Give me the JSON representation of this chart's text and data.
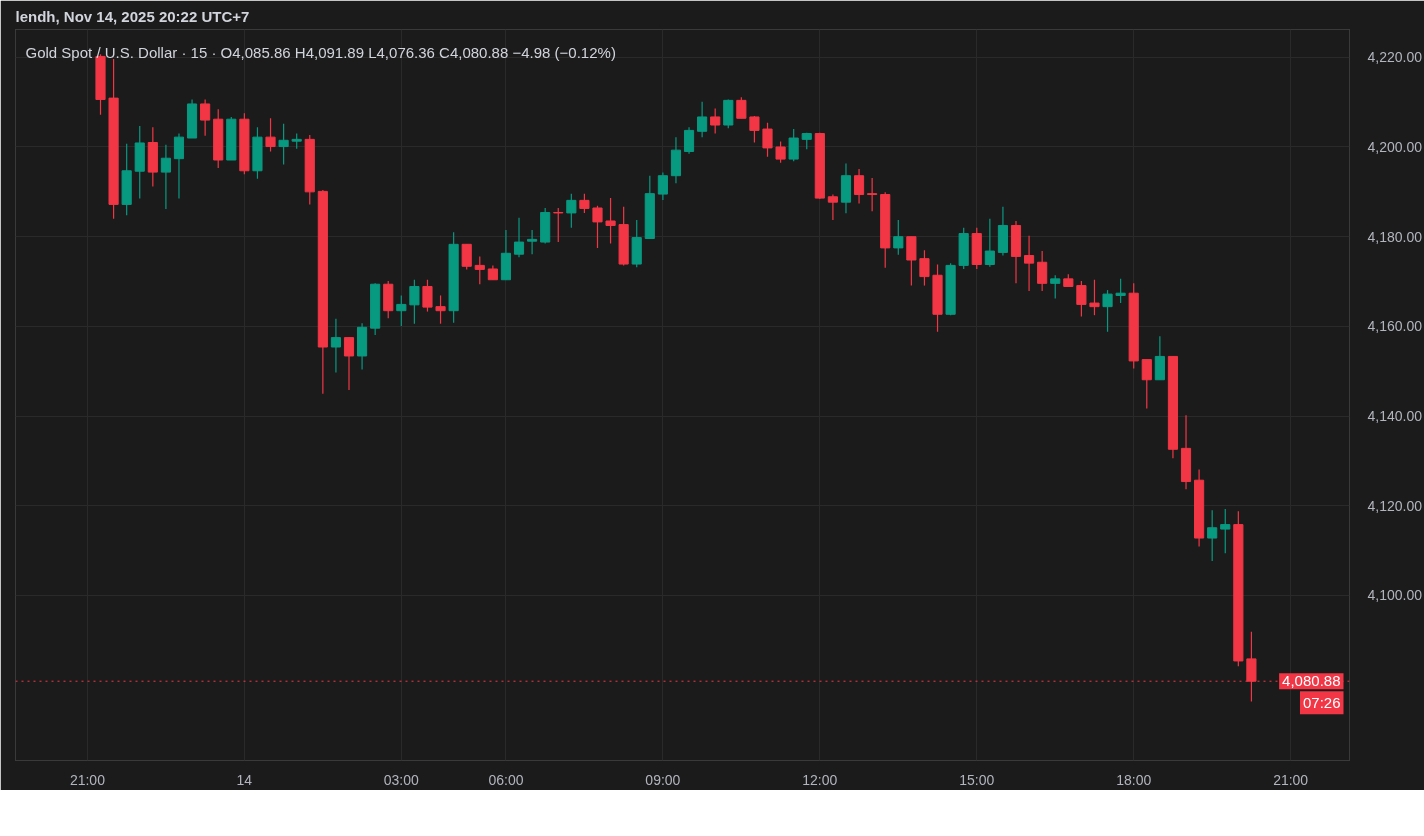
{
  "chart_data": {
    "type": "candlestick",
    "title": "Gold Spot / U.S. Dollar · 15 · O4,085.86 H4,091.89 L4,076.36 C4,080.88 −4.98 (−0.12%)",
    "subtitle": "lendh, Nov 14, 2025 20:22 UTC+7",
    "categories": [
      null,
      null,
      null,
      null,
      null,
      "21:00",
      null,
      null,
      null,
      null,
      null,
      null,
      null,
      null,
      null,
      null,
      null,
      "14",
      null,
      null,
      null,
      null,
      null,
      null,
      null,
      null,
      null,
      null,
      null,
      "03:00",
      null,
      null,
      null,
      null,
      null,
      null,
      null,
      "06:00",
      null,
      null,
      null,
      null,
      null,
      null,
      null,
      null,
      null,
      null,
      null,
      "09:00",
      null,
      null,
      null,
      null,
      null,
      null,
      null,
      null,
      null,
      null,
      null,
      "12:00",
      null,
      null,
      null,
      null,
      null,
      null,
      null,
      null,
      null,
      null,
      null,
      "15:00",
      null,
      null,
      null,
      null,
      null,
      null,
      null,
      null,
      null,
      null,
      null,
      "18:00",
      null,
      null,
      null,
      null,
      null,
      null,
      null,
      null,
      null,
      null,
      null,
      "21:00",
      null,
      null,
      null,
      null
    ],
    "ohlc": [
      null,
      null,
      null,
      null,
      null,
      null,
      [
        4220.2,
        4220.7,
        4207.2,
        4210.6
      ],
      [
        4210.9,
        4219.6,
        4184.0,
        4187.2
      ],
      [
        4187.2,
        4200.7,
        4184.8,
        4194.7
      ],
      [
        4194.6,
        4204.7,
        4188.5,
        4200.9
      ],
      [
        4201.0,
        4204.4,
        4191.2,
        4194.4
      ],
      [
        4194.4,
        4200.5,
        4186.2,
        4197.5
      ],
      [
        4197.4,
        4203.0,
        4188.5,
        4202.2
      ],
      [
        4202.0,
        4210.6,
        4202.0,
        4209.6
      ],
      [
        4209.6,
        4210.6,
        4202.5,
        4206.0
      ],
      [
        4206.2,
        4208.4,
        4195.3,
        4197.1
      ],
      [
        4197.1,
        4206.7,
        4197.1,
        4206.2
      ],
      [
        4206.2,
        4207.5,
        4193.9,
        4194.7
      ],
      [
        4194.7,
        4204.4,
        4192.9,
        4202.2
      ],
      [
        4202.2,
        4206.4,
        4199.0,
        4200.1
      ],
      [
        4200.1,
        4205.2,
        4196.1,
        4201.5
      ],
      [
        4201.3,
        4203.0,
        4199.6,
        4201.7
      ],
      [
        4201.7,
        4202.7,
        4187.2,
        4190.0
      ],
      [
        4190.1,
        4190.4,
        4145.0,
        4155.4
      ],
      [
        4155.4,
        4161.7,
        4149.7,
        4157.5
      ],
      [
        4157.5,
        4157.5,
        4145.8,
        4153.4
      ],
      [
        4153.4,
        4160.7,
        4150.4,
        4159.8
      ],
      [
        4159.6,
        4169.6,
        4158.1,
        4169.4
      ],
      [
        4169.4,
        4170.1,
        4161.8,
        4163.5
      ],
      [
        4163.5,
        4166.9,
        4160.1,
        4164.9
      ],
      [
        4164.8,
        4170.4,
        4160.6,
        4168.9
      ],
      [
        4168.9,
        4170.4,
        4163.3,
        4164.3
      ],
      [
        4164.4,
        4166.9,
        4160.6,
        4163.5
      ],
      [
        4163.5,
        4181.0,
        4160.8,
        4178.3
      ],
      [
        4178.3,
        4178.3,
        4172.7,
        4173.4
      ],
      [
        4173.6,
        4175.6,
        4169.4,
        4172.7
      ],
      [
        4172.8,
        4173.6,
        4170.4,
        4170.4
      ],
      [
        4170.4,
        4181.5,
        4170.4,
        4176.3
      ],
      [
        4176.1,
        4184.2,
        4175.4,
        4178.8
      ],
      [
        4179.0,
        4181.5,
        4176.1,
        4179.4
      ],
      [
        4178.8,
        4186.4,
        4178.5,
        4185.4
      ],
      [
        4185.4,
        4186.4,
        4178.8,
        4185.3
      ],
      [
        4185.3,
        4189.6,
        4182.0,
        4188.1
      ],
      [
        4188.1,
        4189.6,
        4185.3,
        4186.3
      ],
      [
        4186.4,
        4186.9,
        4177.5,
        4183.3
      ],
      [
        4183.5,
        4188.6,
        4178.5,
        4182.5
      ],
      [
        4182.7,
        4186.7,
        4173.6,
        4173.9
      ],
      [
        4173.9,
        4183.7,
        4173.2,
        4179.8
      ],
      [
        4179.6,
        4193.6,
        4179.6,
        4189.6
      ],
      [
        4189.5,
        4194.3,
        4188.2,
        4193.6
      ],
      [
        4193.6,
        4202.2,
        4191.9,
        4199.3
      ],
      [
        4199.0,
        4204.4,
        4198.5,
        4203.7
      ],
      [
        4203.5,
        4210.1,
        4202.2,
        4206.7
      ],
      [
        4206.7,
        4208.6,
        4203.0,
        4204.9
      ],
      [
        4204.9,
        4210.6,
        4204.2,
        4210.4
      ],
      [
        4210.4,
        4211.1,
        4206.4,
        4206.4
      ],
      [
        4206.7,
        4206.9,
        4201.0,
        4203.7
      ],
      [
        4204.0,
        4205.4,
        4197.8,
        4199.8
      ],
      [
        4200.0,
        4201.2,
        4196.5,
        4197.3
      ],
      [
        4197.3,
        4204.0,
        4196.8,
        4202.0
      ],
      [
        4201.7,
        4203.2,
        4199.5,
        4203.0
      ],
      [
        4203.0,
        4203.2,
        4188.4,
        4188.6
      ],
      [
        4188.9,
        4189.4,
        4183.7,
        4187.7
      ],
      [
        4187.7,
        4196.3,
        4185.2,
        4193.6
      ],
      [
        4193.6,
        4195.1,
        4187.4,
        4189.4
      ],
      [
        4189.6,
        4193.1,
        4185.7,
        4189.4
      ],
      [
        4189.4,
        4189.9,
        4173.1,
        4177.5
      ],
      [
        4177.5,
        4183.7,
        4176.0,
        4180.0
      ],
      [
        4180.0,
        4180.0,
        4169.1,
        4174.8
      ],
      [
        4175.1,
        4177.0,
        4169.1,
        4171.1
      ],
      [
        4171.4,
        4173.8,
        4158.8,
        4162.7
      ],
      [
        4162.7,
        4174.1,
        4162.5,
        4173.6
      ],
      [
        4173.6,
        4182.0,
        4172.8,
        4180.7
      ],
      [
        4180.7,
        4182.0,
        4172.8,
        4173.8
      ],
      [
        4173.8,
        4184.0,
        4173.3,
        4176.8
      ],
      [
        4176.5,
        4186.7,
        4175.8,
        4182.5
      ],
      [
        4182.5,
        4183.5,
        4169.6,
        4175.6
      ],
      [
        4175.8,
        4180.2,
        4167.9,
        4174.1
      ],
      [
        4174.3,
        4176.8,
        4167.9,
        4169.6
      ],
      [
        4169.6,
        4171.4,
        4166.2,
        4170.6
      ],
      [
        4170.6,
        4171.6,
        4168.9,
        4168.9
      ],
      [
        4169.1,
        4170.1,
        4162.2,
        4164.9
      ],
      [
        4165.2,
        4170.4,
        4162.5,
        4164.4
      ],
      [
        4164.4,
        4168.1,
        4158.8,
        4167.2
      ],
      [
        4166.9,
        4170.6,
        4165.2,
        4167.4
      ],
      [
        4167.4,
        4169.6,
        4150.6,
        4152.3
      ],
      [
        4152.6,
        4152.6,
        4141.7,
        4148.1
      ],
      [
        4148.1,
        4157.8,
        4148.1,
        4153.3
      ],
      [
        4153.3,
        4153.3,
        4130.6,
        4132.6
      ],
      [
        4132.8,
        4140.2,
        4123.7,
        4125.4
      ],
      [
        4125.7,
        4128.1,
        4110.9,
        4112.8
      ],
      [
        4112.8,
        4119.0,
        4107.7,
        4115.1
      ],
      [
        4114.8,
        4119.3,
        4109.4,
        4115.8
      ],
      [
        4115.8,
        4118.8,
        4084.2,
        4085.4
      ],
      [
        4085.86,
        4091.89,
        4076.36,
        4080.88
      ],
      null,
      null,
      null,
      null,
      null,
      null,
      null
    ],
    "colors": [
      null,
      null,
      null,
      null,
      null,
      null,
      "#f23645",
      "#f23645",
      "#089981",
      "#089981",
      "#f23645",
      "#089981",
      "#089981",
      "#089981",
      "#f23645",
      "#f23645",
      "#089981",
      "#f23645",
      "#089981",
      "#f23645",
      "#089981",
      "#089981",
      "#f23645",
      "#f23645",
      "#089981",
      "#f23645",
      "#089981",
      "#089981",
      "#f23645",
      "#089981",
      "#089981",
      "#f23645",
      "#f23645",
      "#089981",
      "#f23645",
      "#f23645",
      "#f23645",
      "#089981",
      "#089981",
      "#089981",
      "#089981",
      "#f23645",
      "#089981",
      "#f23645",
      "#f23645",
      "#f23645",
      "#f23645",
      "#089981",
      "#089981",
      "#089981",
      "#089981",
      "#089981",
      "#089981",
      "#f23645",
      "#089981",
      "#f23645",
      "#f23645",
      "#f23645",
      "#f23645",
      "#089981",
      "#089981",
      "#f23645",
      "#f23645",
      "#089981",
      "#f23645",
      "#f23645",
      "#f23645",
      "#089981",
      "#f23645",
      "#f23645",
      "#f23645",
      "#089981",
      "#089981",
      "#f23645",
      "#089981",
      "#089981",
      "#f23645",
      "#f23645",
      "#f23645",
      "#089981",
      "#f23645",
      "#f23645",
      "#f23645",
      "#089981",
      "#089981",
      "#f23645",
      "#f23645",
      "#089981",
      "#f23645",
      "#f23645",
      "#f23645",
      "#089981",
      "#089981",
      "#f23645",
      "#f23645",
      null,
      null,
      null,
      null,
      null,
      null,
      null
    ],
    "ylim": [
      4063.2,
      4226.2
    ],
    "yticks": [
      {
        "value": 4100,
        "label": "4,100.00"
      },
      {
        "value": 4120,
        "label": "4,120.00"
      },
      {
        "value": 4140,
        "label": "4,140.00"
      },
      {
        "value": 4160,
        "label": "4,160.00"
      },
      {
        "value": 4180,
        "label": "4,180.00"
      },
      {
        "value": 4200,
        "label": "4,200.00"
      },
      {
        "value": 4220,
        "label": "4,220.00"
      }
    ],
    "grid": true,
    "ref_lines": [
      {
        "axis": "y",
        "value": 4080.88,
        "label": "4,080.88",
        "color": "#f23645",
        "line_style": "dotted"
      }
    ],
    "annotations": [
      "07:26"
    ]
  }
}
